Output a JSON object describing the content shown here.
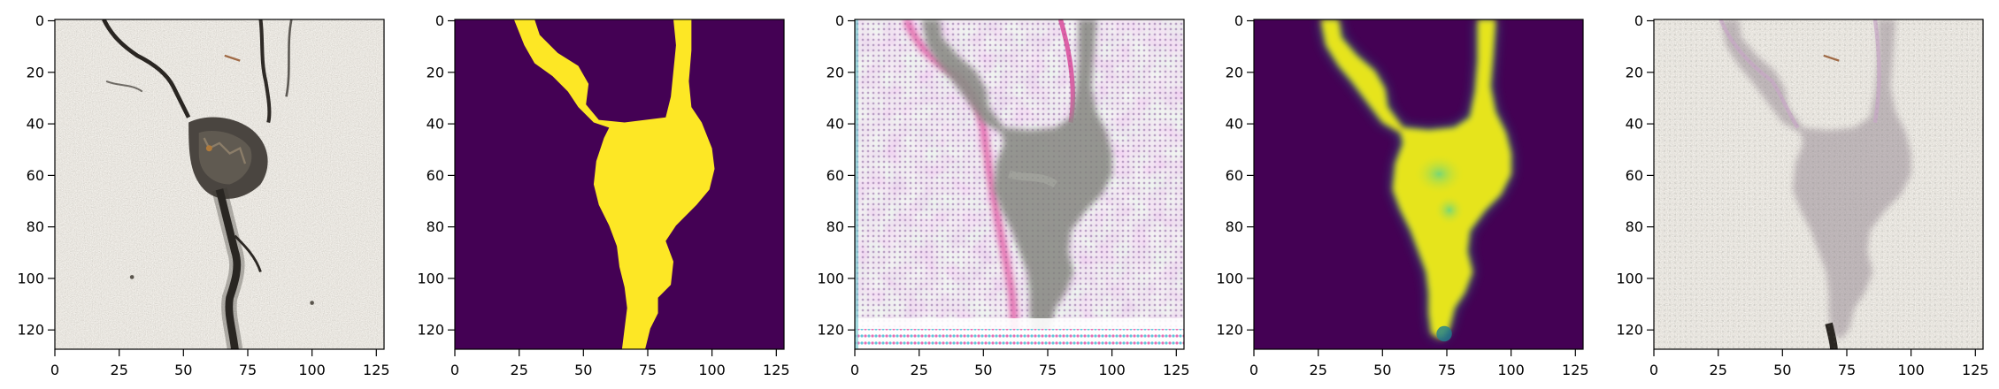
{
  "figure": {
    "panels": [
      {
        "name": "panel-1",
        "content": "crack-photo",
        "x_ticks": [
          "0",
          "25",
          "50",
          "75",
          "100",
          "125"
        ],
        "y_ticks": [
          "0",
          "20",
          "40",
          "60",
          "80",
          "100",
          "120"
        ]
      },
      {
        "name": "panel-2",
        "content": "ground-truth-mask",
        "x_ticks": [
          "0",
          "25",
          "50",
          "75",
          "100",
          "125"
        ],
        "y_ticks": [
          "0",
          "20",
          "40",
          "60",
          "80",
          "100",
          "120"
        ]
      },
      {
        "name": "panel-3",
        "content": "noisy-reconstruction",
        "x_ticks": [
          "0",
          "25",
          "50",
          "75",
          "100",
          "125"
        ],
        "y_ticks": [
          "0",
          "20",
          "40",
          "60",
          "80",
          "100",
          "120"
        ]
      },
      {
        "name": "panel-4",
        "content": "predicted-mask",
        "x_ticks": [
          "0",
          "25",
          "50",
          "75",
          "100",
          "125"
        ],
        "y_ticks": [
          "0",
          "20",
          "40",
          "60",
          "80",
          "100",
          "120"
        ]
      },
      {
        "name": "panel-5",
        "content": "overlay",
        "x_ticks": [
          "0",
          "25",
          "50",
          "75",
          "100",
          "125"
        ],
        "y_ticks": [
          "0",
          "20",
          "40",
          "60",
          "80",
          "100",
          "120"
        ]
      }
    ],
    "colors": {
      "viridis_dark": "#440154",
      "viridis_bright": "#fde725",
      "concrete": "#a8a296",
      "crack_dark": "#2e2b27",
      "noise_pink": "#e7b6e1"
    }
  }
}
